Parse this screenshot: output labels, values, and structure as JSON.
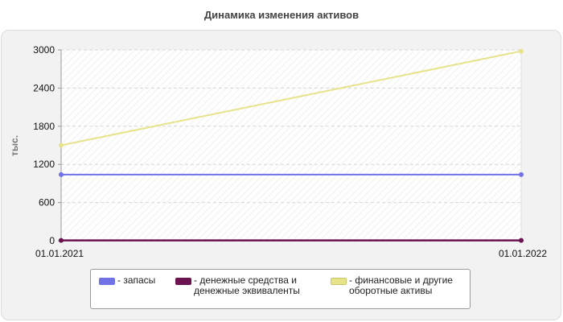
{
  "chart_data": {
    "type": "line",
    "title": "Динамика изменения активов",
    "ylabel": "тыс.",
    "xlabel": "",
    "categories": [
      "01.01.2021",
      "01.01.2022"
    ],
    "ylim": [
      0,
      3000
    ],
    "yticks": [
      0,
      600,
      1200,
      1800,
      2400,
      3000
    ],
    "grid": true,
    "legend_position": "bottom",
    "series": [
      {
        "name": "запасы",
        "values": [
          1040,
          1040
        ],
        "color": "#7072e6"
      },
      {
        "name": "денежные средства и денежные эквиваленты",
        "values": [
          5,
          5
        ],
        "color": "#6b1250"
      },
      {
        "name": "финансовые и другие оборотные активы",
        "values": [
          1500,
          2980
        ],
        "color": "#e6e38a"
      }
    ]
  },
  "legend": {
    "items": [
      {
        "label": "- запасы"
      },
      {
        "label": "- денежные средства и\nденежные эквиваленты"
      },
      {
        "label": "- финансовые и другие\nоборотные активы"
      }
    ]
  }
}
